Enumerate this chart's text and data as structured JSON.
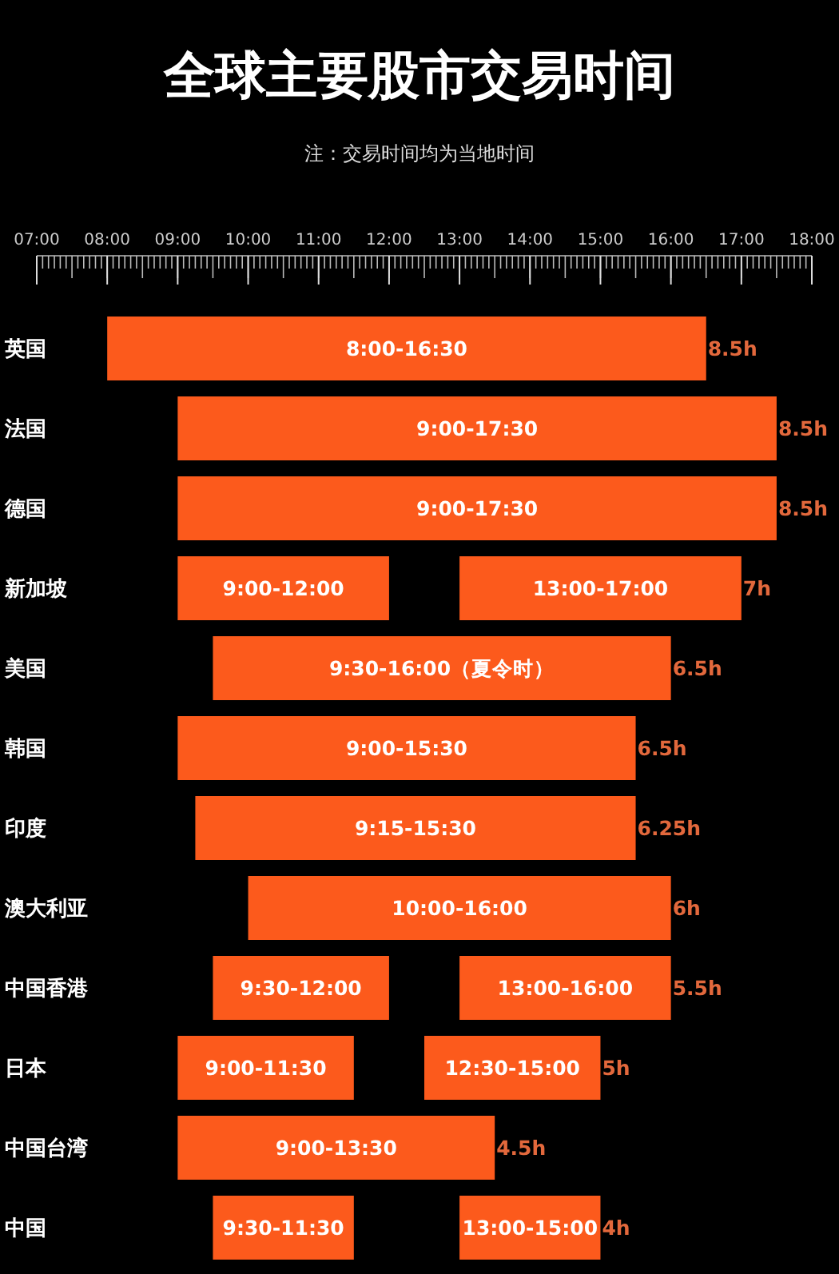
{
  "chart_data": {
    "type": "bar",
    "orientation": "horizontal",
    "title": "全球主要股市交易时间",
    "subtitle": "注：交易时间均为当地时间",
    "categories": [
      "英国",
      "法国",
      "德国",
      "新加坡",
      "美国",
      "韩国",
      "印度",
      "澳大利亚",
      "中国香港",
      "日本",
      "中国台湾",
      "中国"
    ],
    "series": [
      {
        "color": "#fc5a1c",
        "base": [
          8,
          9,
          9,
          9,
          9.5,
          9,
          9.25,
          10,
          9.5,
          9,
          9,
          9.5
        ],
        "values": [
          8.5,
          8.5,
          8.5,
          3,
          6.5,
          6.5,
          6.25,
          6,
          2.5,
          2.5,
          4.5,
          2
        ],
        "value_labels": [
          "8:00-16:30",
          "9:00-17:30",
          "9:00-17:30",
          "9:00-12:00",
          "9:30-16:00（夏令时）",
          "9:00-15:30",
          "9:15-15:30",
          "10:00-16:00",
          "9:30-12:00",
          "9:00-11:30",
          "9:00-13:30",
          "9:30-11:30"
        ]
      },
      {
        "color": "#fc5a1c",
        "base": [
          null,
          null,
          null,
          13,
          null,
          null,
          null,
          null,
          13,
          12.5,
          null,
          13
        ],
        "values": [
          null,
          null,
          null,
          4,
          null,
          null,
          null,
          null,
          3,
          2.5,
          null,
          2
        ],
        "value_labels": [
          null,
          null,
          null,
          "13:00-17:00",
          null,
          null,
          null,
          null,
          "13:00-16:00",
          "12:30-15:00",
          null,
          "13:00-15:00"
        ]
      }
    ],
    "totals": [
      "8.5h",
      "8.5h",
      "8.5h",
      "7h",
      "6.5h",
      "6.5h",
      "6.25h",
      "6h",
      "5.5h",
      "5h",
      "4.5h",
      "4h"
    ],
    "xlim": [
      7,
      18
    ],
    "xticks": [
      {
        "value": 7,
        "label": "07:00"
      },
      {
        "value": 8,
        "label": "08:00"
      },
      {
        "value": 9,
        "label": "09:00"
      },
      {
        "value": 10,
        "label": "10:00"
      },
      {
        "value": 11,
        "label": "11:00"
      },
      {
        "value": 12,
        "label": "12:00"
      },
      {
        "value": 13,
        "label": "13:00"
      },
      {
        "value": 14,
        "label": "14:00"
      },
      {
        "value": 15,
        "label": "15:00"
      },
      {
        "value": 16,
        "label": "16:00"
      },
      {
        "value": 17,
        "label": "17:00"
      },
      {
        "value": 18,
        "label": "18:00"
      }
    ],
    "grid": false
  }
}
